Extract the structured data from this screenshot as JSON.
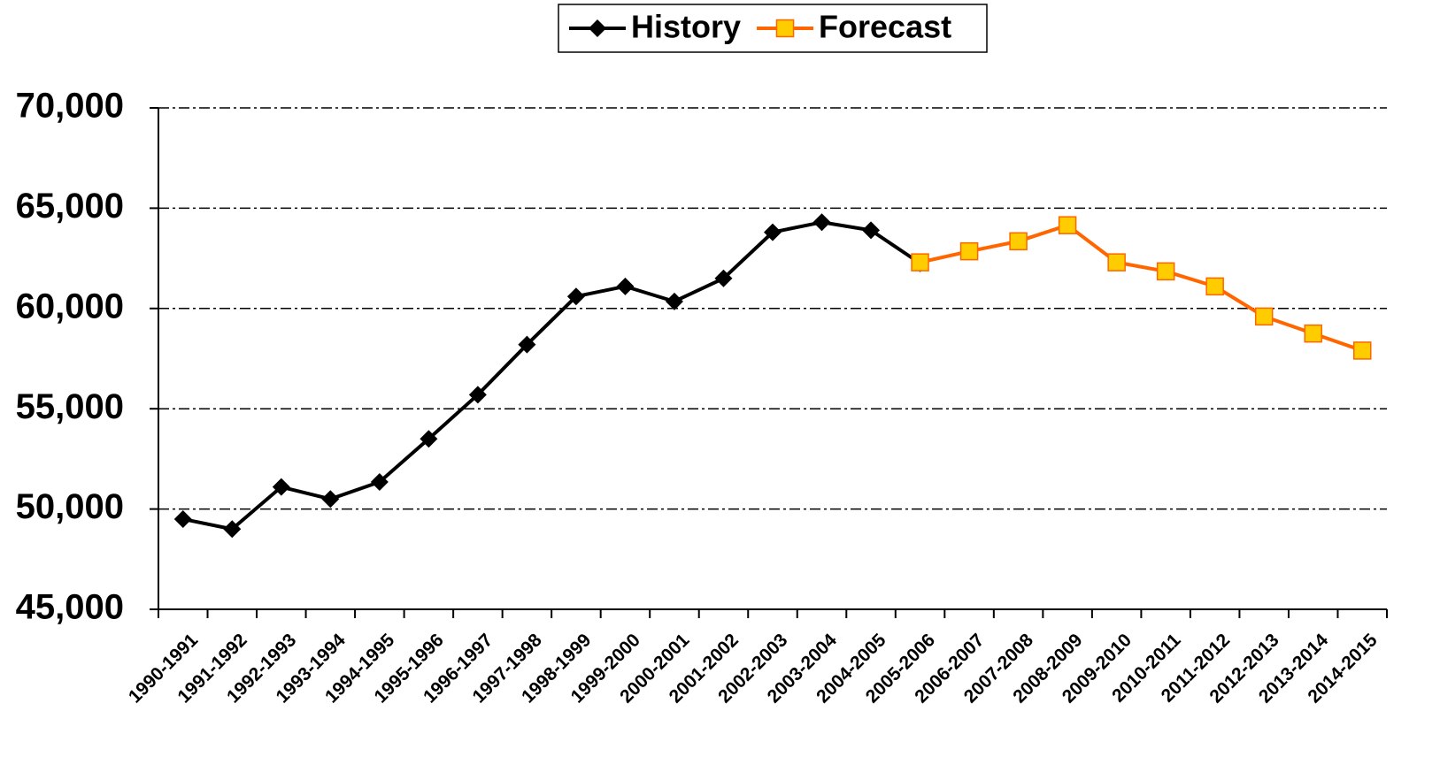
{
  "chart_data": {
    "type": "line",
    "categories": [
      "1990-1991",
      "1991-1992",
      "1992-1993",
      "1993-1994",
      "1994-1995",
      "1995-1996",
      "1996-1997",
      "1997-1998",
      "1998-1999",
      "1999-2000",
      "2000-2001",
      "2001-2002",
      "2002-2003",
      "2003-2004",
      "2004-2005",
      "2005-2006",
      "2006-2007",
      "2007-2008",
      "2008-2009",
      "2009-2010",
      "2010-2011",
      "2011-2012",
      "2012-2013",
      "2013-2014",
      "2014-2015"
    ],
    "series": [
      {
        "name": "History",
        "color": "#000000",
        "marker": "diamond",
        "values": [
          49500,
          49000,
          51100,
          50500,
          51350,
          53500,
          55700,
          58200,
          60600,
          61100,
          60350,
          61500,
          63800,
          64300,
          63900,
          62250,
          null,
          null,
          null,
          null,
          null,
          null,
          null,
          null,
          null
        ]
      },
      {
        "name": "Forecast",
        "color": "#ff6600",
        "marker": "square",
        "marker_fill": "#ffcc00",
        "values": [
          null,
          null,
          null,
          null,
          null,
          null,
          null,
          null,
          null,
          null,
          null,
          null,
          null,
          null,
          null,
          62300,
          62850,
          63350,
          64150,
          62300,
          61850,
          61100,
          59600,
          58750,
          57900
        ]
      }
    ],
    "ylim": [
      45000,
      70000
    ],
    "yticks": [
      {
        "value": 45000,
        "label": "45,000"
      },
      {
        "value": 50000,
        "label": "50,000"
      },
      {
        "value": 55000,
        "label": "55,000"
      },
      {
        "value": 60000,
        "label": "60,000"
      },
      {
        "value": 65000,
        "label": "65,000"
      },
      {
        "value": 70000,
        "label": "70,000"
      }
    ],
    "grid": true,
    "legend": "top"
  }
}
